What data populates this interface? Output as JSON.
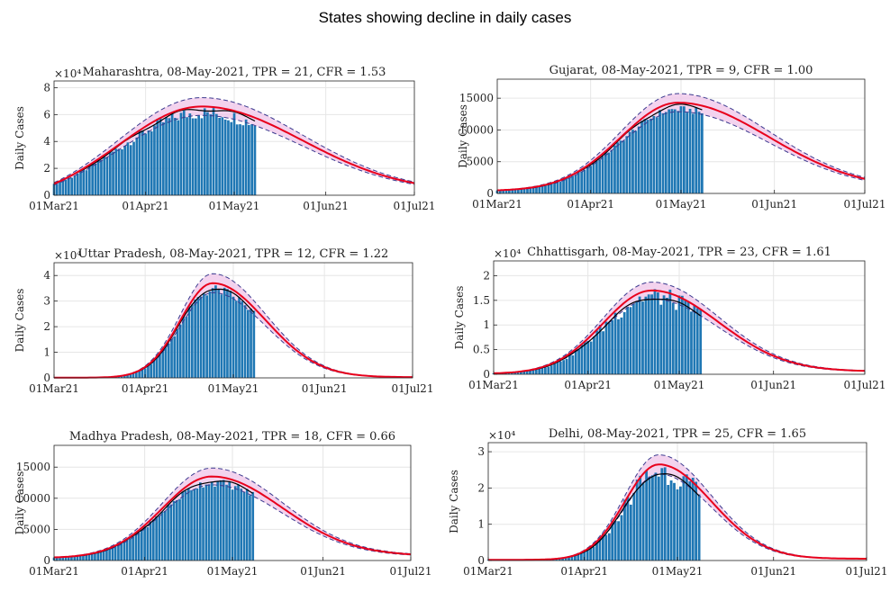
{
  "figure": {
    "title": "States showing decline in daily cases"
  },
  "colors": {
    "bars": "#1f77b4",
    "model": "#e8001c",
    "band": "#f0c8ea",
    "band_edge": "#3b3b8f",
    "observed": "#000000",
    "grid": "#e6e6e6"
  },
  "chart_data": [
    {
      "type": "bar",
      "title": "Maharashtra, 08-May-2021, TPR = 21, CFR = 1.53",
      "ylabel": "Daily Cases",
      "multiplier": "×10⁴",
      "xlim": [
        "01Mar21",
        "01Jul21"
      ],
      "xticks": [
        "01Mar21",
        "01Apr21",
        "01May21",
        "01Jun21",
        "01Jul21"
      ],
      "ylim": [
        0,
        85000
      ],
      "yticks": [
        0,
        20000,
        40000,
        60000,
        80000
      ],
      "ytick_labels": [
        "0",
        "2",
        "4",
        "6",
        "8"
      ],
      "peak_date": "20Apr21",
      "peak_value": 66000,
      "start_value": 8500,
      "end_value": 9000,
      "rise_width_days": 28,
      "fall_width_days": 34,
      "band_width_fraction": 0.1,
      "bars_end_date": "08May21",
      "bar_jitter": 0.08,
      "observed_peak": 64000
    },
    {
      "type": "bar",
      "title": "Gujarat, 08-May-2021, TPR = 9, CFR = 1.00",
      "ylabel": "Daily Cases",
      "multiplier": "",
      "xlim": [
        "01Mar21",
        "01Jul21"
      ],
      "xticks": [
        "01Mar21",
        "01Apr21",
        "01May21",
        "01Jun21",
        "01Jul21"
      ],
      "ylim": [
        0,
        18000
      ],
      "yticks": [
        0,
        5000,
        10000,
        15000
      ],
      "ytick_labels": [
        "0",
        "5000",
        "10000",
        "15000"
      ],
      "peak_date": "30Apr21",
      "peak_value": 14300,
      "start_value": 500,
      "end_value": 2300,
      "rise_width_days": 19,
      "fall_width_days": 30,
      "band_width_fraction": 0.1,
      "bars_end_date": "08May21",
      "bar_jitter": 0.04,
      "observed_peak": 13800
    },
    {
      "type": "bar",
      "title": "Uttar Pradesh, 08-May-2021, TPR = 12, CFR = 1.22",
      "ylabel": "Daily Cases",
      "multiplier": "×10⁴",
      "xlim": [
        "01Mar21",
        "01Jul21"
      ],
      "xticks": [
        "01Mar21",
        "01Apr21",
        "01May21",
        "01Jun21",
        "01Jul21"
      ],
      "ylim": [
        0,
        45000
      ],
      "yticks": [
        0,
        10000,
        20000,
        30000,
        40000
      ],
      "ytick_labels": [
        "0",
        "1",
        "2",
        "3",
        "4"
      ],
      "peak_date": "24Apr21",
      "peak_value": 37000,
      "start_value": 100,
      "end_value": 300,
      "rise_width_days": 11,
      "fall_width_days": 18,
      "band_width_fraction": 0.1,
      "bars_end_date": "08May21",
      "bar_jitter": 0.06,
      "observed_peak": 35000
    },
    {
      "type": "bar",
      "title": "Chhattisgarh, 08-May-2021, TPR = 23, CFR = 1.61",
      "ylabel": "Daily Cases",
      "multiplier": "×10⁴",
      "xlim": [
        "01Mar21",
        "01Jul21"
      ],
      "xticks": [
        "01Mar21",
        "01Apr21",
        "01May21",
        "01Jun21",
        "01Jul21"
      ],
      "ylim": [
        0,
        23000
      ],
      "yticks": [
        0,
        5000,
        10000,
        15000,
        20000
      ],
      "ytick_labels": [
        "0",
        "0.5",
        "1",
        "1.5",
        "2"
      ],
      "peak_date": "22Apr21",
      "peak_value": 17000,
      "start_value": 200,
      "end_value": 700,
      "rise_width_days": 16,
      "fall_width_days": 22,
      "band_width_fraction": 0.1,
      "bars_end_date": "08May21",
      "bar_jitter": 0.12,
      "observed_peak": 15500
    },
    {
      "type": "bar",
      "title": "Madhya Pradesh, 08-May-2021, TPR = 18, CFR = 0.66",
      "ylabel": "Daily Cases",
      "multiplier": "",
      "xlim": [
        "01Mar21",
        "01Jul21"
      ],
      "xticks": [
        "01Mar21",
        "01Apr21",
        "01May21",
        "01Jun21",
        "01Jul21"
      ],
      "ylim": [
        0,
        18500
      ],
      "yticks": [
        0,
        5000,
        10000,
        15000
      ],
      "ytick_labels": [
        "0",
        "5000",
        "10000",
        "15000"
      ],
      "peak_date": "24Apr21",
      "peak_value": 13500,
      "start_value": 500,
      "end_value": 1000,
      "rise_width_days": 17,
      "fall_width_days": 24,
      "band_width_fraction": 0.1,
      "bars_end_date": "08May21",
      "bar_jitter": 0.05,
      "observed_peak": 12800
    },
    {
      "type": "bar",
      "title": "Delhi, 08-May-2021, TPR = 25, CFR = 1.65",
      "ylabel": "Daily Cases",
      "multiplier": "×10⁴",
      "xlim": [
        "01Mar21",
        "01Jul21"
      ],
      "xticks": [
        "01Mar21",
        "01Apr21",
        "01May21",
        "01Jun21",
        "01Jul21"
      ],
      "ylim": [
        0,
        32500
      ],
      "yticks": [
        0,
        10000,
        20000,
        30000
      ],
      "ytick_labels": [
        "0",
        "1",
        "2",
        "3"
      ],
      "peak_date": "25Apr21",
      "peak_value": 26500,
      "start_value": 200,
      "end_value": 500,
      "rise_width_days": 11,
      "fall_width_days": 17,
      "band_width_fraction": 0.1,
      "bars_end_date": "08May21",
      "bar_jitter": 0.14,
      "observed_peak": 24000
    }
  ]
}
